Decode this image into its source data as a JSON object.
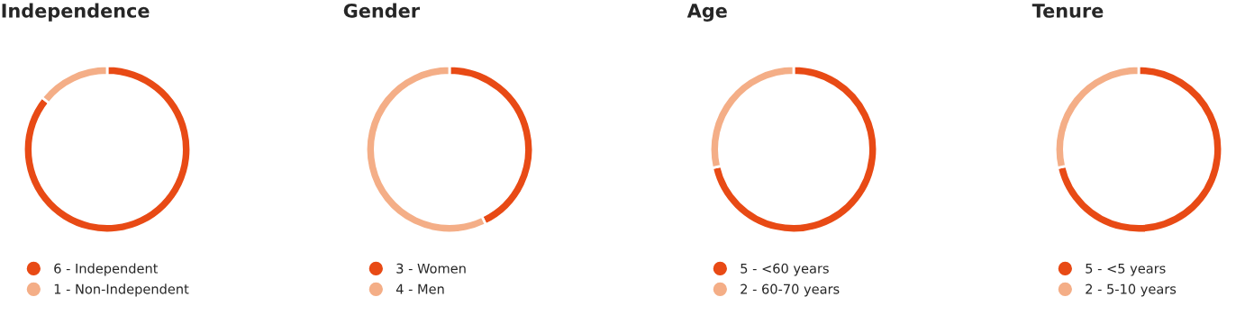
{
  "chart_data": [
    {
      "type": "donut",
      "title": "Independence",
      "categories": [
        "6 - Independent",
        "1 - Non-Independent"
      ],
      "values": [
        6,
        1
      ],
      "colors": [
        "#e84a15",
        "#f4ae87"
      ],
      "legend": "bottom"
    },
    {
      "type": "donut",
      "title": "Gender",
      "categories": [
        "3 - Women",
        "4 - Men"
      ],
      "values": [
        3,
        4
      ],
      "colors": [
        "#e84a15",
        "#f4ae87"
      ],
      "legend": "bottom"
    },
    {
      "type": "donut",
      "title": "Age",
      "categories": [
        "5 - <60 years",
        "2 - 60-70 years"
      ],
      "values": [
        5,
        2
      ],
      "colors": [
        "#e84a15",
        "#f4ae87"
      ],
      "legend": "bottom"
    },
    {
      "type": "donut",
      "title": "Tenure",
      "categories": [
        "5 - <5 years",
        "2 - 5-10 years"
      ],
      "values": [
        5,
        2
      ],
      "colors": [
        "#e84a15",
        "#f4ae87"
      ],
      "legend": "bottom"
    }
  ]
}
